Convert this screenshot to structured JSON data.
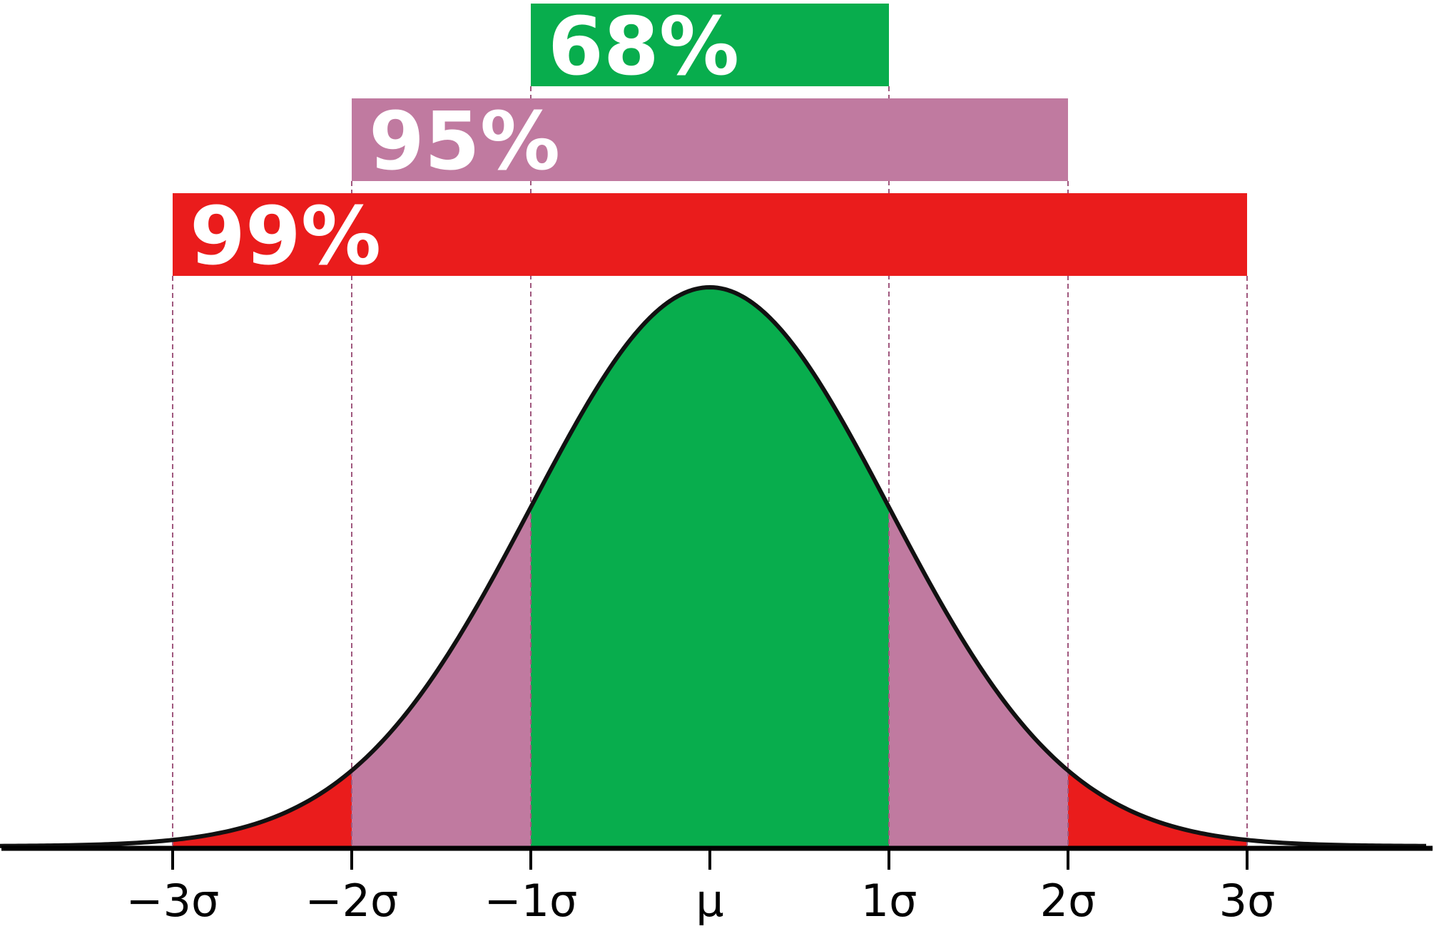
{
  "chart_data": {
    "type": "area",
    "title": "",
    "xlabel": "",
    "ylabel": "",
    "distribution": "normal",
    "mean": 0,
    "sd": 1,
    "xlim": [
      -4,
      4
    ],
    "grid": false,
    "x_ticks": [
      {
        "value": -3,
        "label": "−3σ"
      },
      {
        "value": -2,
        "label": "−2σ"
      },
      {
        "value": -1,
        "label": "−1σ"
      },
      {
        "value": 0,
        "label": "μ"
      },
      {
        "value": 1,
        "label": "1σ"
      },
      {
        "value": 2,
        "label": "2σ"
      },
      {
        "value": 3,
        "label": "3σ"
      }
    ],
    "bands": [
      {
        "label": "68%",
        "from": -1,
        "to": 1,
        "color": "#08ad4d"
      },
      {
        "label": "95%",
        "from": -2,
        "to": 2,
        "color": "#c07aa0"
      },
      {
        "label": "99%",
        "from": -3,
        "to": 3,
        "color": "#ea1c1c"
      }
    ],
    "guide_line_color": "#a0587e",
    "curve_color": "#111111"
  }
}
